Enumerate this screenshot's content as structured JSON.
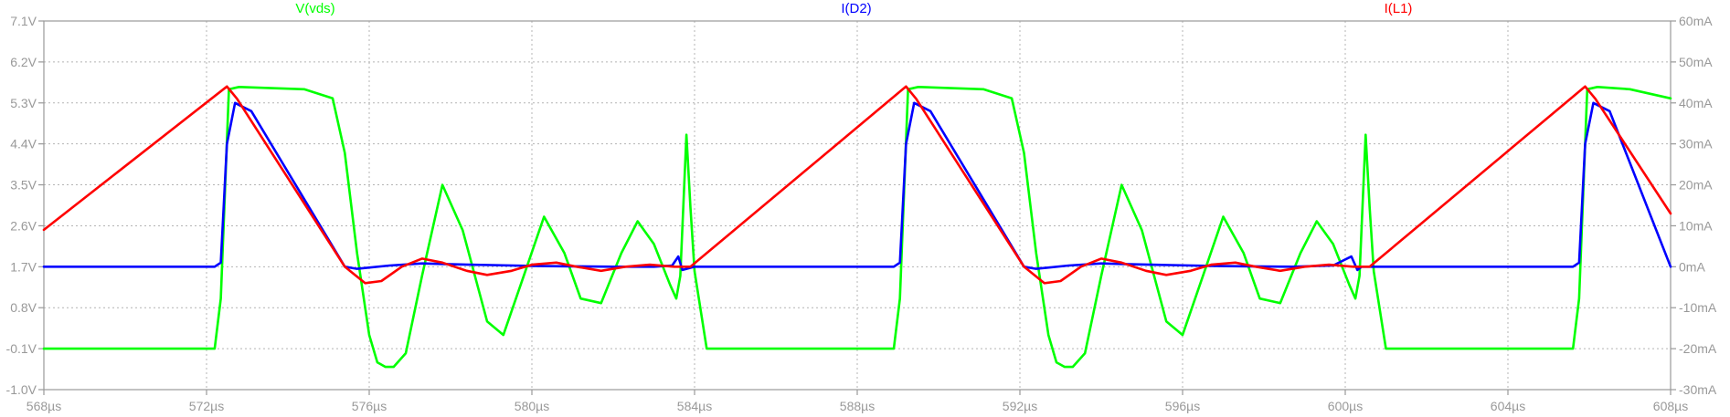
{
  "chart_data": {
    "type": "line",
    "title": "",
    "xlabel": "",
    "ylabel": "",
    "grid": true,
    "x_axis": {
      "min": 568,
      "max": 608,
      "unit": "µs",
      "ticks": [
        568,
        572,
        576,
        580,
        584,
        588,
        592,
        596,
        600,
        604,
        608
      ],
      "tick_labels": [
        "568µs",
        "572µs",
        "576µs",
        "580µs",
        "584µs",
        "588µs",
        "592µs",
        "596µs",
        "600µs",
        "604µs",
        "608µs"
      ]
    },
    "y_left": {
      "min": -1.0,
      "max": 7.1,
      "ticks": [
        -1.0,
        -0.1,
        0.8,
        1.7,
        2.6,
        3.5,
        4.4,
        5.3,
        6.2,
        7.1
      ],
      "tick_labels": [
        "-1.0V",
        "-0.1V",
        "0.8V",
        "1.7V",
        "2.6V",
        "3.5V",
        "4.4V",
        "5.3V",
        "6.2V",
        "7.1V"
      ]
    },
    "y_right": {
      "min": -30,
      "max": 60,
      "ticks": [
        -30,
        -20,
        -10,
        0,
        10,
        20,
        30,
        40,
        50,
        60
      ],
      "tick_labels": [
        "-30mA",
        "-20mA",
        "-10mA",
        "0mA",
        "10mA",
        "20mA",
        "30mA",
        "40mA",
        "50mA",
        "60mA"
      ]
    },
    "series": [
      {
        "name": "V(vds)",
        "color": "#00ff00",
        "axis": "left",
        "x": [
          568,
          572.2,
          572.35,
          572.55,
          572.8,
          574.4,
          575.1,
          575.4,
          575.7,
          576,
          576.2,
          576.4,
          576.6,
          576.9,
          577.3,
          577.8,
          578.3,
          578.9,
          579.3,
          579.8,
          580.3,
          580.8,
          581.2,
          581.7,
          582.2,
          582.6,
          583.0,
          583.4,
          583.55,
          583.65,
          583.8,
          583.9,
          584.0,
          584.3,
          588.9,
          589.05,
          589.25,
          589.5,
          591.1,
          591.8,
          592.1,
          592.4,
          592.7,
          592.9,
          593.1,
          593.3,
          593.6,
          594.0,
          594.5,
          595.0,
          595.6,
          596.0,
          596.5,
          597.0,
          597.5,
          597.9,
          598.4,
          598.9,
          599.3,
          599.7,
          600.1,
          600.25,
          600.35,
          600.5,
          600.6,
          600.7,
          601.0,
          605.6,
          605.75,
          605.95,
          606.2,
          607.0,
          608
        ],
        "y": [
          -0.1,
          -0.1,
          1.0,
          5.6,
          5.65,
          5.6,
          5.4,
          4.2,
          2.0,
          0.2,
          -0.4,
          -0.5,
          -0.5,
          -0.2,
          1.5,
          3.5,
          2.5,
          0.5,
          0.2,
          1.5,
          2.8,
          2.0,
          1.0,
          0.9,
          2.0,
          2.7,
          2.2,
          1.3,
          1.0,
          1.5,
          4.6,
          3.0,
          1.6,
          -0.1,
          -0.1,
          1.0,
          5.6,
          5.65,
          5.6,
          5.4,
          4.2,
          2.0,
          0.2,
          -0.4,
          -0.5,
          -0.5,
          -0.2,
          1.5,
          3.5,
          2.5,
          0.5,
          0.2,
          1.5,
          2.8,
          2.0,
          1.0,
          0.9,
          2.0,
          2.7,
          2.2,
          1.3,
          1.0,
          1.5,
          4.6,
          3.0,
          1.6,
          -0.1,
          -0.1,
          1.0,
          5.6,
          5.65,
          5.6,
          5.4
        ]
      },
      {
        "name": "I(D2)",
        "color": "#0000ff",
        "axis": "right",
        "x": [
          568,
          572.2,
          572.35,
          572.5,
          572.7,
          572.9,
          573.1,
          575.4,
          575.7,
          576.5,
          577.3,
          578.0,
          579.0,
          580.0,
          581.0,
          582.0,
          583.0,
          583.45,
          583.6,
          583.7,
          584.0,
          584.3,
          588.9,
          589.05,
          589.2,
          589.4,
          589.6,
          589.8,
          592.1,
          592.4,
          593.2,
          594.0,
          594.7,
          595.7,
          596.7,
          597.7,
          598.7,
          599.7,
          600.15,
          600.3,
          600.4,
          600.7,
          601.0,
          605.6,
          605.75,
          605.9,
          606.1,
          606.3,
          606.5,
          608
        ],
        "y": [
          0,
          0,
          1,
          30,
          40,
          39,
          38,
          0,
          -0.5,
          0.3,
          0.8,
          0.6,
          0.4,
          0.2,
          0.1,
          0.0,
          0.0,
          0.3,
          2.5,
          -0.8,
          0.0,
          0.0,
          0,
          1,
          30,
          40,
          39,
          38,
          0,
          -0.5,
          0.3,
          0.8,
          0.6,
          0.4,
          0.2,
          0.1,
          0.0,
          0.3,
          2.5,
          -0.8,
          0.0,
          0.0,
          0.0,
          0,
          1,
          30,
          40,
          39,
          38,
          0
        ]
      },
      {
        "name": "I(L1)",
        "color": "#ff0000",
        "axis": "right",
        "x": [
          568,
          572.5,
          572.75,
          575.4,
          575.9,
          576.3,
          576.8,
          577.3,
          577.8,
          578.4,
          578.9,
          579.5,
          580.0,
          580.6,
          581.1,
          581.7,
          582.3,
          582.9,
          583.5,
          583.9,
          589.2,
          589.45,
          592.1,
          592.6,
          593.0,
          593.5,
          594.0,
          594.5,
          595.1,
          595.6,
          596.2,
          596.7,
          597.3,
          597.8,
          598.4,
          599.0,
          599.6,
          600.2,
          600.6,
          605.9,
          606.15,
          608
        ],
        "y": [
          9,
          44,
          41,
          0,
          -4,
          -3.5,
          0,
          2,
          1,
          -1,
          -2,
          -1,
          0.5,
          1,
          0,
          -1,
          0,
          0.5,
          0,
          0,
          44,
          41,
          0,
          -4,
          -3.5,
          0,
          2,
          1,
          -1,
          -2,
          -1,
          0.5,
          1,
          0,
          -1,
          0,
          0.5,
          0,
          0,
          44,
          41,
          13
        ]
      }
    ]
  }
}
